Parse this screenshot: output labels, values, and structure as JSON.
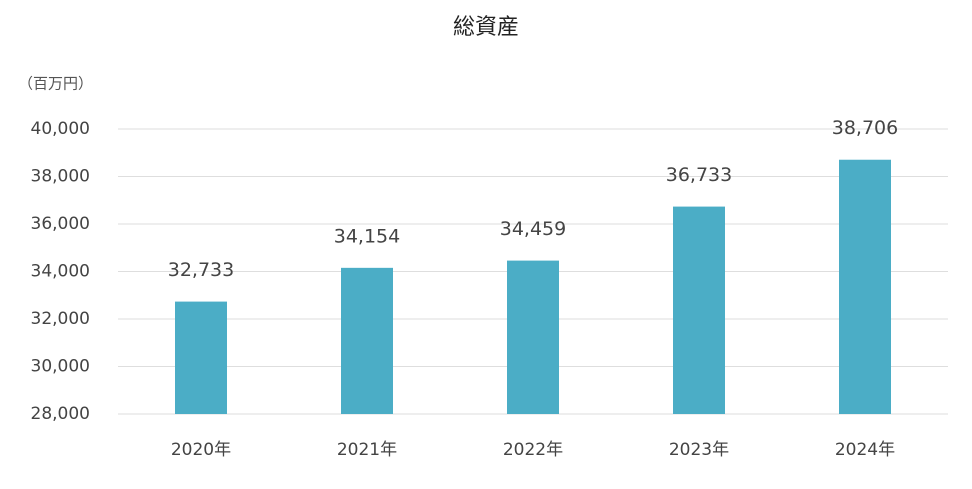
{
  "chart_data": {
    "type": "bar",
    "title": "総資産",
    "y_label": "（百万円）",
    "categories": [
      "2020年",
      "2021年",
      "2022年",
      "2023年",
      "2024年"
    ],
    "values": [
      32733,
      34154,
      34459,
      36733,
      38706
    ],
    "value_labels": [
      "32,733",
      "34,154",
      "34,459",
      "36,733",
      "38,706"
    ],
    "color": "#4badc6",
    "ylim": [
      28000,
      40000
    ],
    "yticks": [
      {
        "value": 28000,
        "label": "28,000"
      },
      {
        "value": 30000,
        "label": "30,000"
      },
      {
        "value": 32000,
        "label": "32,000"
      },
      {
        "value": 34000,
        "label": "34,000"
      },
      {
        "value": 36000,
        "label": "36,000"
      },
      {
        "value": 38000,
        "label": "38,000"
      },
      {
        "value": 40000,
        "label": "40,000"
      }
    ],
    "grid": true
  }
}
